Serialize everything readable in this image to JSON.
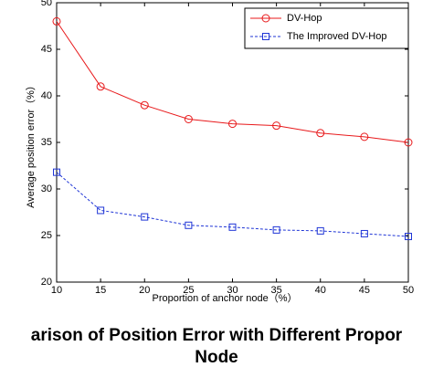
{
  "chart_data": {
    "type": "line",
    "x": [
      10,
      15,
      20,
      25,
      30,
      35,
      40,
      45,
      50
    ],
    "series": [
      {
        "name": "DV-Hop",
        "color": "#e8191b",
        "marker": "circle",
        "dashed": false,
        "values": [
          48,
          41,
          39,
          37.5,
          37,
          36.8,
          36,
          35.6,
          35
        ]
      },
      {
        "name": "The Improved DV-Hop",
        "color": "#1f35d6",
        "marker": "square",
        "dashed": true,
        "values": [
          31.8,
          27.7,
          27,
          26.1,
          25.9,
          25.6,
          25.5,
          25.2,
          24.9
        ]
      }
    ],
    "xlabel": "Proportion of anchor node（%）",
    "ylabel": "Average position error（%）",
    "xlim": [
      10,
      50
    ],
    "xticks": [
      10,
      15,
      20,
      25,
      30,
      35,
      40,
      45,
      50
    ],
    "ylim": [
      20,
      50
    ],
    "yticks": [
      20,
      25,
      30,
      35,
      40,
      45,
      50
    ],
    "legend": "upper right",
    "caption": [
      "arison of Position Error with Different Propor",
      "Node"
    ]
  }
}
